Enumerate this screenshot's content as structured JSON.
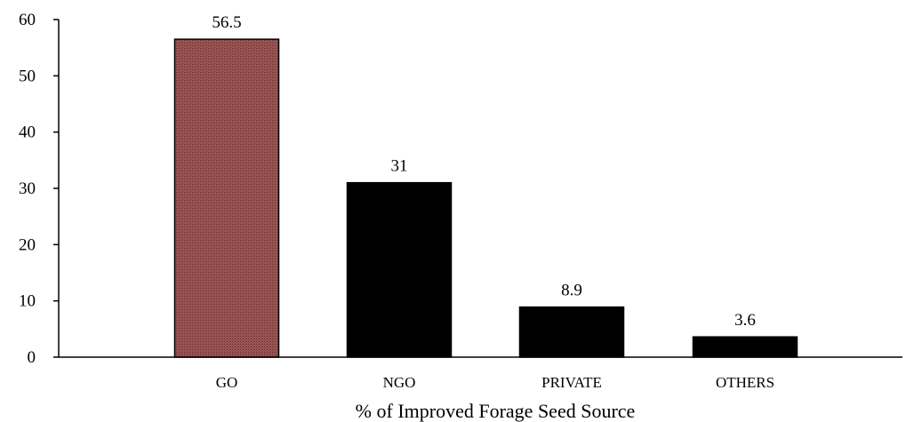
{
  "chart_data": {
    "type": "bar",
    "title": "",
    "xlabel": "% of Improved Forage Seed Source",
    "ylabel": "",
    "categories": [
      "GO",
      "NGO",
      "PRIVATE",
      "OTHERS"
    ],
    "values": [
      56.5,
      31,
      8.9,
      3.6
    ],
    "data_labels": [
      "56.5",
      "31",
      "8.9",
      "3.6"
    ],
    "yticks": [
      "0",
      "10",
      "20",
      "30",
      "40",
      "50",
      "60"
    ],
    "ylim": [
      0,
      60
    ],
    "grid": false,
    "legend": "none",
    "bar_colors": [
      "#8e4a4a",
      "#000000",
      "#000000",
      "#000000"
    ]
  }
}
